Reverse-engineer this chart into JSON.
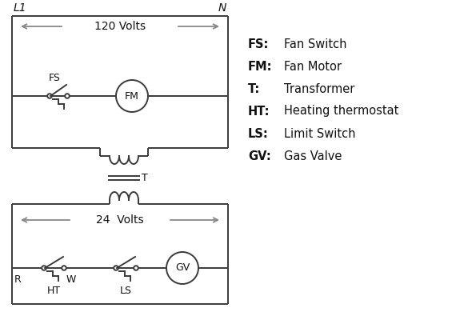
{
  "bg_color": "#ffffff",
  "line_color": "#3a3a3a",
  "arrow_color": "#888888",
  "text_color": "#111111",
  "legend": [
    [
      "FS:",
      "Fan Switch"
    ],
    [
      "FM:",
      "Fan Motor"
    ],
    [
      "T:",
      "Transformer"
    ],
    [
      "HT:",
      "Heating thermostat"
    ],
    [
      "LS:",
      "Limit Switch"
    ],
    [
      "GV:",
      "Gas Valve"
    ]
  ],
  "L1_label": "L1",
  "N_label": "N",
  "volts120_label": "120 Volts",
  "volts24_label": "24  Volts",
  "FS_label": "FS",
  "FM_label": "FM",
  "T_label": "T",
  "R_label": "R",
  "W_label": "W",
  "HT_label": "HT",
  "LS_label": "LS",
  "GV_label": "GV"
}
